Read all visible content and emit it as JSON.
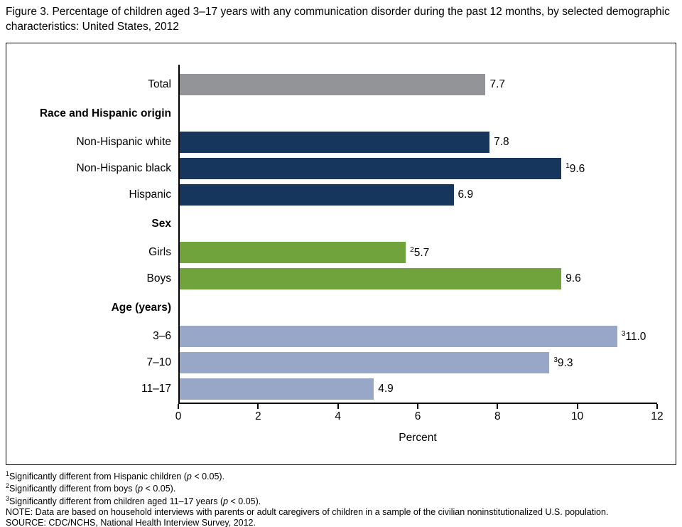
{
  "chart_data": {
    "type": "bar",
    "orientation": "horizontal",
    "title": "Figure 3. Percentage of children aged 3–17 years with any communication disorder during the past 12 months, by selected demographic characteristics: United States, 2012",
    "xlabel": "Percent",
    "xlim": [
      0,
      12
    ],
    "xticks": [
      0,
      2,
      4,
      6,
      8,
      10,
      12
    ],
    "grid": false,
    "legend": false,
    "colors": {
      "total": "#929497",
      "race": "#17365D",
      "sex": "#71A33D",
      "age": "#98A6C8",
      "axis": "#000000"
    },
    "rows": [
      {
        "kind": "bar",
        "label": "Total",
        "value": 7.7,
        "value_label": "7.7",
        "group": "total"
      },
      {
        "kind": "header",
        "label": "Race and Hispanic origin"
      },
      {
        "kind": "bar",
        "label": "Non-Hispanic white",
        "value": 7.8,
        "value_label": "7.8",
        "group": "race"
      },
      {
        "kind": "bar",
        "label": "Non-Hispanic black",
        "value": 9.6,
        "value_label": "9.6",
        "sup": "1",
        "group": "race"
      },
      {
        "kind": "bar",
        "label": "Hispanic",
        "value": 6.9,
        "value_label": "6.9",
        "group": "race"
      },
      {
        "kind": "header",
        "label": "Sex"
      },
      {
        "kind": "bar",
        "label": "Girls",
        "value": 5.7,
        "value_label": "5.7",
        "sup": "2",
        "group": "sex"
      },
      {
        "kind": "bar",
        "label": "Boys",
        "value": 9.6,
        "value_label": "9.6",
        "group": "sex"
      },
      {
        "kind": "header",
        "label": "Age (years)"
      },
      {
        "kind": "bar",
        "label": "3–6",
        "value": 11.0,
        "value_label": "11.0",
        "sup": "3",
        "group": "age"
      },
      {
        "kind": "bar",
        "label": "7–10",
        "value": 9.3,
        "value_label": "9.3",
        "sup": "3",
        "group": "age"
      },
      {
        "kind": "bar",
        "label": "11–17",
        "value": 4.9,
        "value_label": "4.9",
        "group": "age"
      }
    ]
  },
  "footnotes": [
    [
      {
        "t": "1",
        "sup": true
      },
      {
        "t": "Significantly different from Hispanic children ("
      },
      {
        "t": "p",
        "i": true
      },
      {
        "t": " < 0.05)."
      }
    ],
    [
      {
        "t": "2",
        "sup": true
      },
      {
        "t": "Significantly different from boys ("
      },
      {
        "t": "p",
        "i": true
      },
      {
        "t": " < 0.05)."
      }
    ],
    [
      {
        "t": "3",
        "sup": true
      },
      {
        "t": "Significantly different from children aged 11–17 years ("
      },
      {
        "t": "p",
        "i": true
      },
      {
        "t": " < 0.05)."
      }
    ],
    [
      {
        "t": "NOTE: Data are based on household interviews with parents or adult caregivers of children in a sample of the civilian noninstitutionalized U.S. population."
      }
    ],
    [
      {
        "t": "SOURCE: CDC/NCHS, National Health Interview Survey, 2012."
      }
    ]
  ]
}
